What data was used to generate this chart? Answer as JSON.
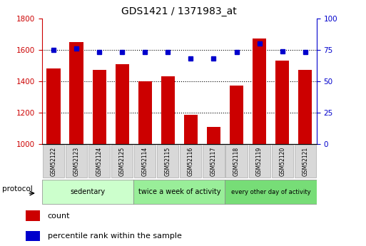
{
  "title": "GDS1421 / 1371983_at",
  "samples": [
    "GSM52122",
    "GSM52123",
    "GSM52124",
    "GSM52125",
    "GSM52114",
    "GSM52115",
    "GSM52116",
    "GSM52117",
    "GSM52118",
    "GSM52119",
    "GSM52120",
    "GSM52121"
  ],
  "bar_values": [
    1480,
    1650,
    1470,
    1510,
    1400,
    1430,
    1185,
    1110,
    1370,
    1670,
    1530,
    1470
  ],
  "pct_values": [
    75,
    76,
    73,
    73,
    73,
    73,
    68,
    68,
    73,
    80,
    74,
    73
  ],
  "ylim_left": [
    1000,
    1800
  ],
  "ylim_right": [
    0,
    100
  ],
  "yticks_left": [
    1000,
    1200,
    1400,
    1600,
    1800
  ],
  "yticks_right": [
    0,
    25,
    50,
    75,
    100
  ],
  "bar_color": "#cc0000",
  "dot_color": "#0000cc",
  "groups": [
    {
      "label": "sedentary",
      "start": 0,
      "end": 4
    },
    {
      "label": "twice a week of activity",
      "start": 4,
      "end": 8
    },
    {
      "label": "every other day of activity",
      "start": 8,
      "end": 12
    }
  ],
  "group_colors": [
    "#ccffcc",
    "#99ee99",
    "#77dd77"
  ],
  "protocol_label": "protocol",
  "legend_count_label": "count",
  "legend_pct_label": "percentile rank within the sample",
  "sample_box_color": "#d8d8d8",
  "sample_box_edge": "#aaaaaa",
  "figsize": [
    5.13,
    3.45
  ],
  "dpi": 100
}
